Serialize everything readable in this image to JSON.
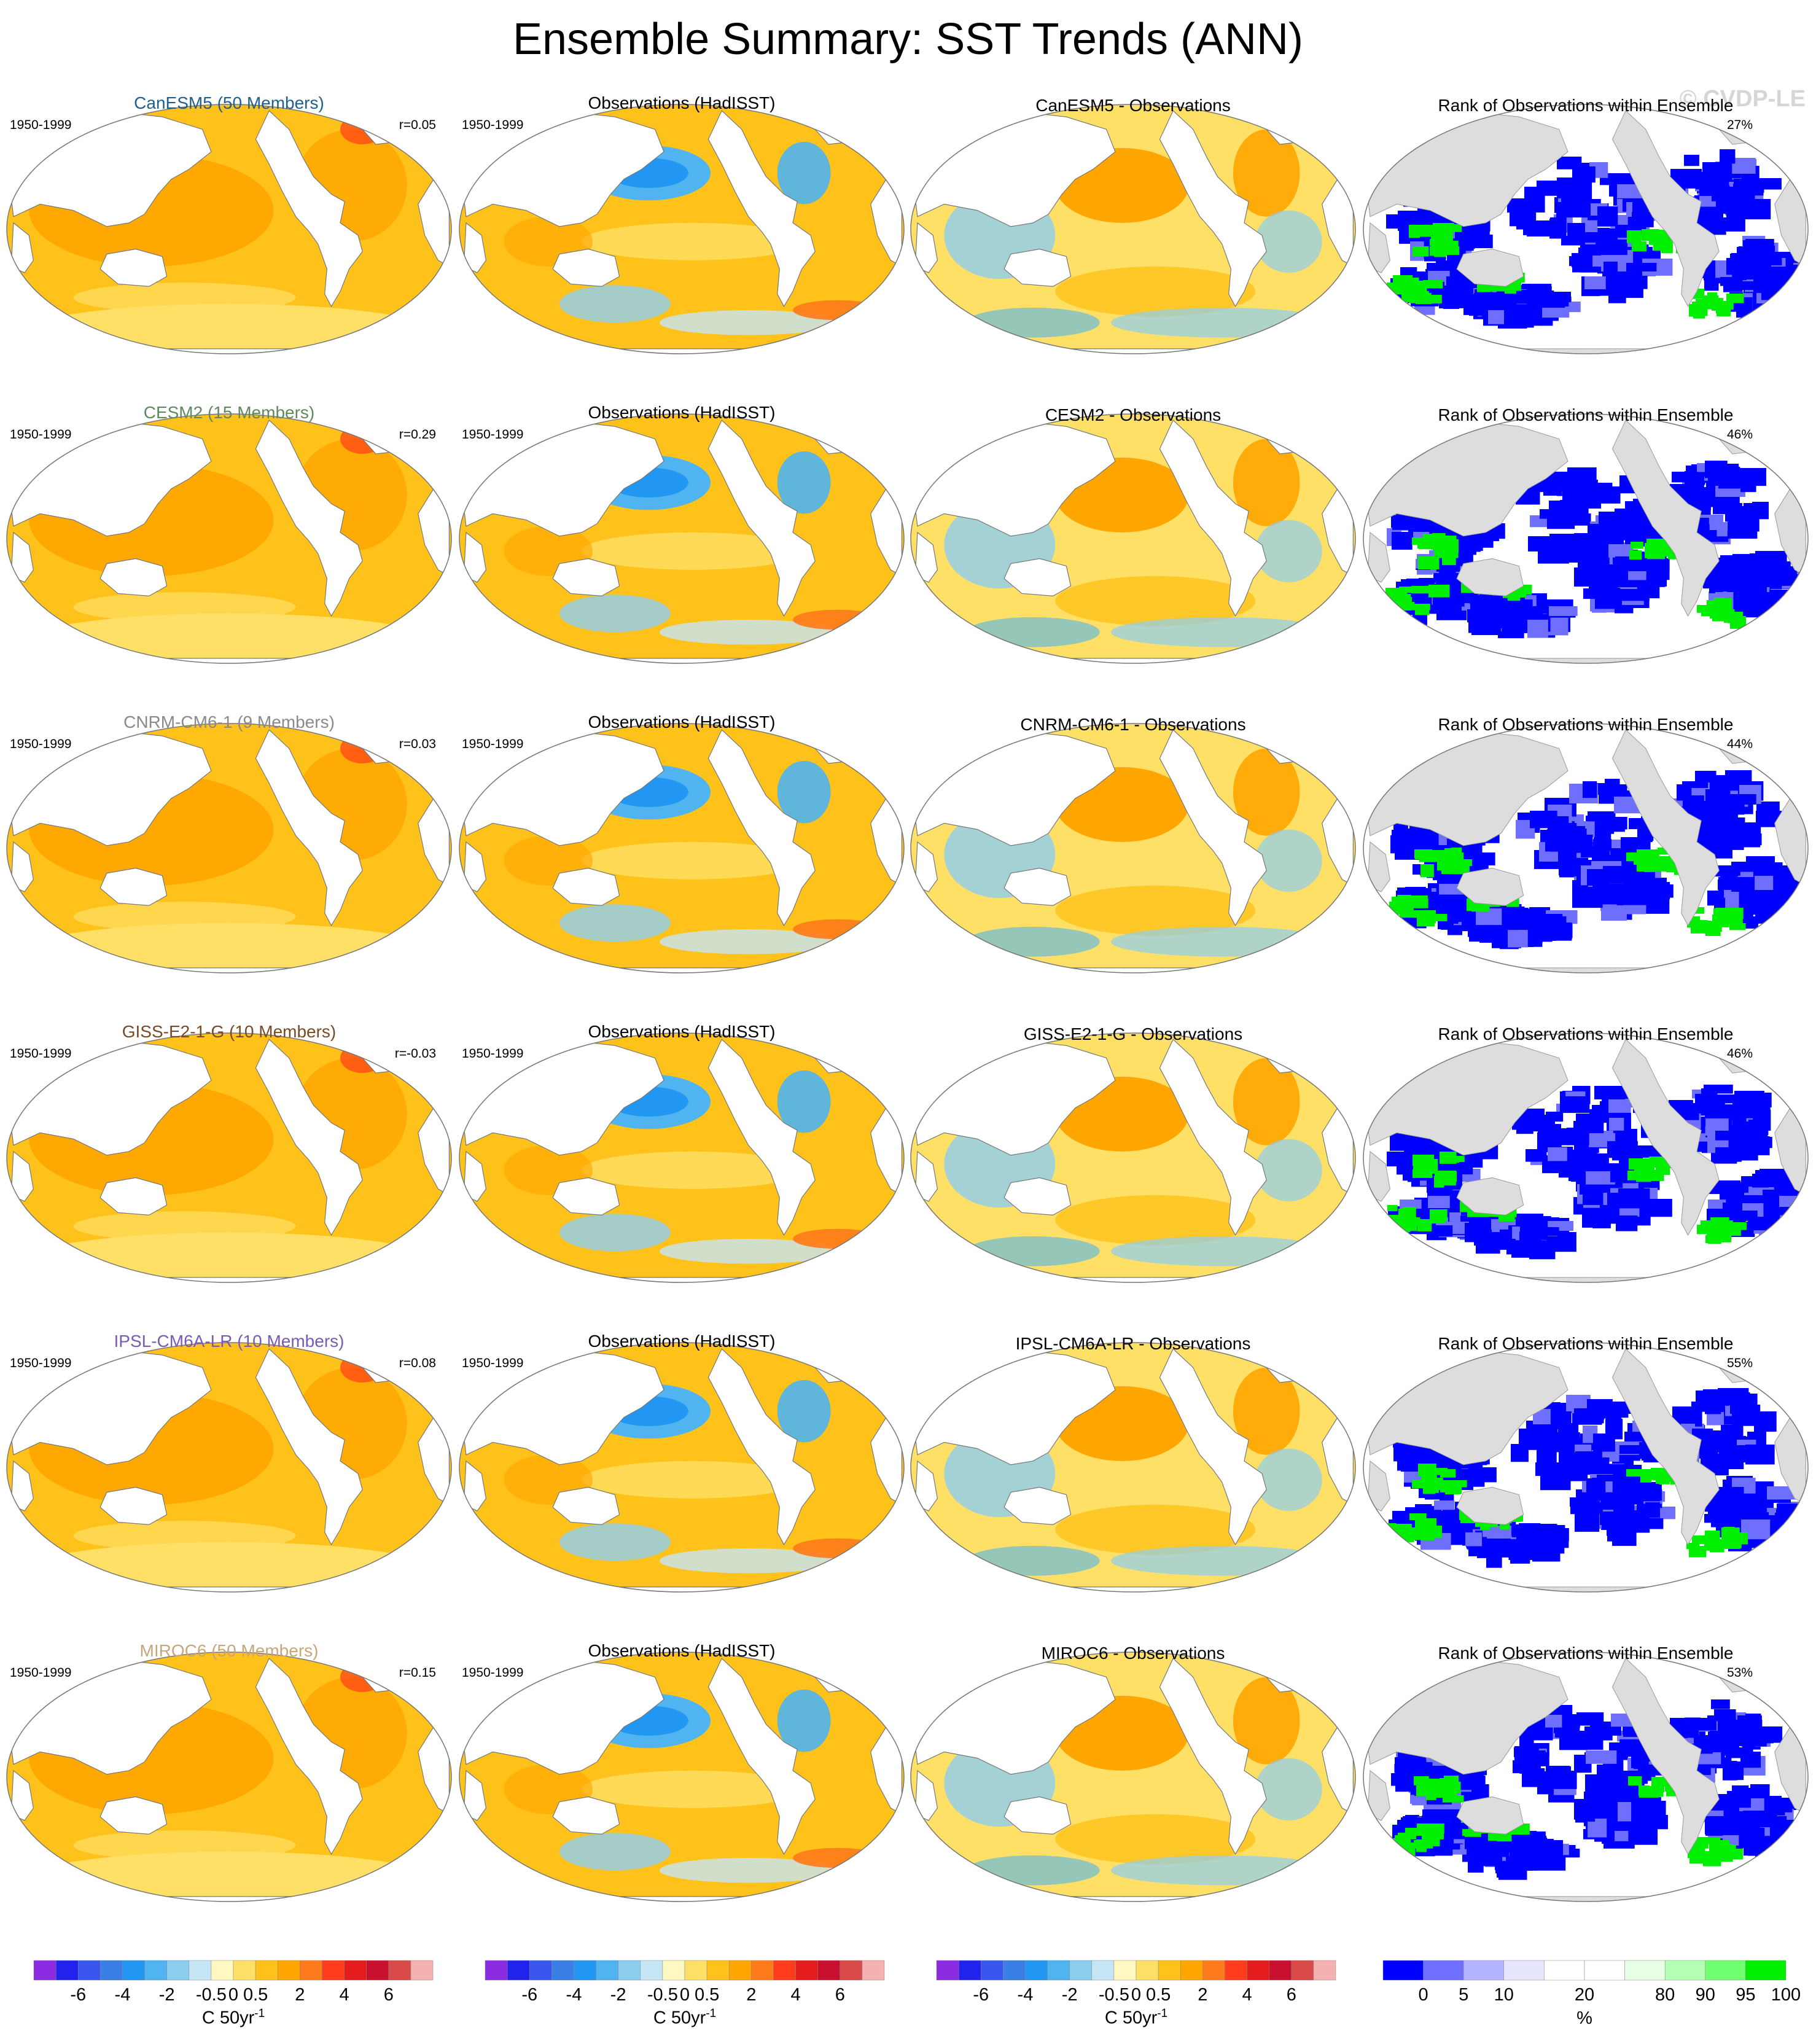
{
  "title": "Ensemble Summary: SST Trends (ANN)",
  "watermark": "© CVDP-LE",
  "period": "1950-1999",
  "obs_title": "Observations (HadISST)",
  "rank_title": "Rank of Observations within Ensemble",
  "rows": [
    {
      "model_title": "CanESM5 (50 Members)",
      "model_color": "#1f5f8b",
      "r": "r=0.05",
      "diff_title": "CanESM5 - Observations",
      "rank_pct": "27%"
    },
    {
      "model_title": "CESM2 (15 Members)",
      "model_color": "#5e8a5e",
      "r": "r=0.29",
      "diff_title": "CESM2 - Observations",
      "rank_pct": "46%"
    },
    {
      "model_title": "CNRM-CM6-1 (9 Members)",
      "model_color": "#8a8a8a",
      "r": "r=0.03",
      "diff_title": "CNRM-CM6-1 - Observations",
      "rank_pct": "44%"
    },
    {
      "model_title": "GISS-E2-1-G (10 Members)",
      "model_color": "#7a4a25",
      "r": "r=-0.03",
      "diff_title": "GISS-E2-1-G - Observations",
      "rank_pct": "46%"
    },
    {
      "model_title": "IPSL-CM6A-LR (10 Members)",
      "model_color": "#7b5ab5",
      "r": "r=0.08",
      "diff_title": "IPSL-CM6A-LR - Observations",
      "rank_pct": "55%"
    },
    {
      "model_title": "MIROC6 (50 Members)",
      "model_color": "#c9a57a",
      "r": "r=0.15",
      "diff_title": "MIROC6 - Observations",
      "rank_pct": "53%"
    }
  ],
  "trend_colorbar": {
    "colors": [
      "#8a2be2",
      "#2222ee",
      "#3a55ee",
      "#3a7fe6",
      "#2196f3",
      "#4fb4ef",
      "#8dcdf0",
      "#c6e6f6",
      "#fff8c0",
      "#ffe066",
      "#ffc21a",
      "#ffa500",
      "#ff7a1a",
      "#ff3d1a",
      "#e51a1a",
      "#c8102e",
      "#d94a4a",
      "#f5b0b0"
    ],
    "labels": [
      "-6",
      "-4",
      "-2",
      "-0.5",
      "0",
      "0.5",
      "2",
      "4",
      "6"
    ],
    "label_after_box": [
      1,
      3,
      5,
      7,
      8,
      9,
      11,
      13,
      15
    ],
    "unit": "C 50yr",
    "unit_sup": "-1"
  },
  "rank_colorbar": {
    "colors": [
      "#0000ff",
      "#6f6fff",
      "#b3b3ff",
      "#e6e6ff",
      "#ffffff",
      "#ffffff",
      "#e6ffe6",
      "#b3ffb3",
      "#6fff6f",
      "#00ee00"
    ],
    "labels": [
      "0",
      "5",
      "10",
      "20",
      "80",
      "90",
      "95",
      "100"
    ],
    "label_after_box": [
      0,
      1,
      2,
      4,
      6,
      7,
      8,
      9
    ],
    "unit": "%"
  }
}
